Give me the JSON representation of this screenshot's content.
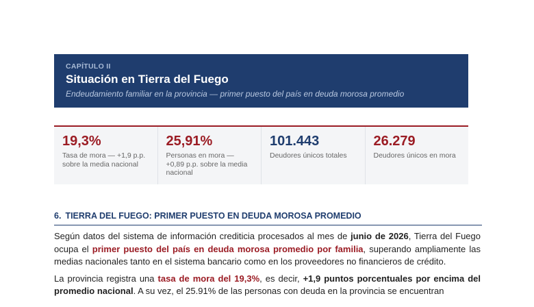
{
  "header": {
    "kicker": "CAPÍTULO II",
    "title": "Situación en Tierra del Fuego",
    "subtitle": "Endeudamiento familiar en la provincia — primer puesto del país en deuda morosa promedio"
  },
  "stats": [
    {
      "value": "19,3%",
      "label": "Tasa de mora — +1,9 p.p. sobre la media nacional",
      "color": "#9b1c24"
    },
    {
      "value": "25,91%",
      "label": "Personas en mora — +0,89 p.p. sobre la media nacional",
      "color": "#9b1c24"
    },
    {
      "value": "101.443",
      "label": "Deudores únicos totales",
      "color": "#1f3d6e"
    },
    {
      "value": "26.279",
      "label": "Deudores únicos en mora",
      "color": "#9b1c24"
    }
  ],
  "section": {
    "number": "6.",
    "title": "TIERRA DEL FUEGO: PRIMER PUESTO EN DEUDA MOROSA PROMEDIO"
  },
  "paragraphs": [
    [
      {
        "text": "Según datos del sistema de información crediticia procesados al mes de ",
        "style": "normal"
      },
      {
        "text": "junio de 2026",
        "style": "bold"
      },
      {
        "text": ", Tierra del Fuego ocupa el ",
        "style": "normal"
      },
      {
        "text": "primer puesto del país en deuda morosa promedio por familia",
        "style": "highlight"
      },
      {
        "text": ", superando ampliamente las medias nacionales tanto en el sistema bancario como en los proveedores no financieros de crédito.",
        "style": "normal"
      }
    ],
    [
      {
        "text": "La provincia registra una ",
        "style": "normal"
      },
      {
        "text": "tasa de mora del 19,3%",
        "style": "highlight"
      },
      {
        "text": ", es decir, ",
        "style": "normal"
      },
      {
        "text": "+1,9 puntos porcentuales por encima del promedio nacional",
        "style": "bold"
      },
      {
        "text": ". A su vez, el 25.91% de las personas con deuda en la provincia se encuentran",
        "style": "normal"
      }
    ]
  ]
}
